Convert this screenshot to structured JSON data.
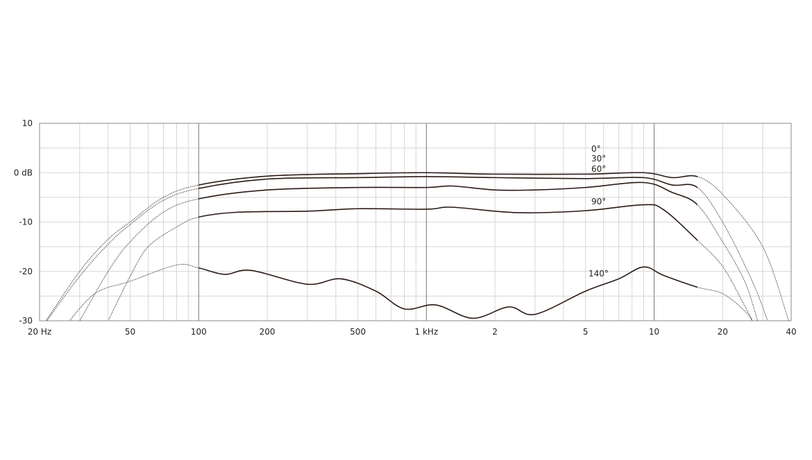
{
  "chart_data": {
    "type": "line",
    "title": "",
    "xlabel": "",
    "ylabel": "",
    "x_scale": "log",
    "xlim": [
      20,
      40000
    ],
    "ylim": [
      -30,
      10
    ],
    "grid": true,
    "line_color": "#2a1a14",
    "x_ticks": [
      {
        "value": 20,
        "label": "20 Hz"
      },
      {
        "value": 50,
        "label": "50"
      },
      {
        "value": 100,
        "label": "100"
      },
      {
        "value": 200,
        "label": "200"
      },
      {
        "value": 500,
        "label": "500"
      },
      {
        "value": 1000,
        "label": "1 kHz"
      },
      {
        "value": 2000,
        "label": "2"
      },
      {
        "value": 5000,
        "label": "5"
      },
      {
        "value": 10000,
        "label": "10"
      },
      {
        "value": 20000,
        "label": "20"
      },
      {
        "value": 40000,
        "label": "40"
      }
    ],
    "y_ticks": [
      {
        "value": 10,
        "label": "10"
      },
      {
        "value": 0,
        "label": "0 dB"
      },
      {
        "value": -10,
        "label": "-10"
      },
      {
        "value": -20,
        "label": "-20"
      },
      {
        "value": -30,
        "label": "-30"
      }
    ],
    "solid_range_hz": [
      100,
      15500
    ],
    "series": [
      {
        "name": "0°",
        "points": [
          [
            20,
            -32
          ],
          [
            30,
            -20
          ],
          [
            40,
            -13.5
          ],
          [
            50,
            -10
          ],
          [
            70,
            -5
          ],
          [
            100,
            -2.5
          ],
          [
            200,
            -0.7
          ],
          [
            500,
            -0.2
          ],
          [
            1000,
            0
          ],
          [
            2000,
            -0.3
          ],
          [
            5000,
            -0.3
          ],
          [
            9000,
            0
          ],
          [
            12000,
            -1
          ],
          [
            15500,
            -0.8
          ],
          [
            20000,
            -4.4
          ],
          [
            30000,
            -15
          ],
          [
            39000,
            -30
          ],
          [
            41000,
            -33
          ]
        ]
      },
      {
        "name": "30°",
        "points": [
          [
            20,
            -32
          ],
          [
            30,
            -21
          ],
          [
            40,
            -14.5
          ],
          [
            50,
            -10.5
          ],
          [
            70,
            -5.6
          ],
          [
            100,
            -3.2
          ],
          [
            200,
            -1.3
          ],
          [
            500,
            -1
          ],
          [
            1000,
            -0.8
          ],
          [
            2000,
            -1
          ],
          [
            5000,
            -1.2
          ],
          [
            9000,
            -1
          ],
          [
            12000,
            -2.5
          ],
          [
            15500,
            -3
          ],
          [
            20000,
            -10
          ],
          [
            27000,
            -22
          ],
          [
            31500,
            -30
          ],
          [
            33000,
            -33
          ]
        ]
      },
      {
        "name": "60°",
        "points": [
          [
            28,
            -32
          ],
          [
            30,
            -30
          ],
          [
            40,
            -20
          ],
          [
            50,
            -14
          ],
          [
            70,
            -8
          ],
          [
            100,
            -5.3
          ],
          [
            200,
            -3.5
          ],
          [
            500,
            -3
          ],
          [
            1000,
            -3
          ],
          [
            1300,
            -2.7
          ],
          [
            2000,
            -3.5
          ],
          [
            3000,
            -3.5
          ],
          [
            5000,
            -3
          ],
          [
            9000,
            -2
          ],
          [
            12000,
            -4
          ],
          [
            15500,
            -6.5
          ],
          [
            20000,
            -14
          ],
          [
            25000,
            -22
          ],
          [
            28500,
            -30
          ],
          [
            30000,
            -33
          ]
        ]
      },
      {
        "name": "90°",
        "points": [
          [
            38,
            -32
          ],
          [
            40,
            -30
          ],
          [
            50,
            -21
          ],
          [
            60,
            -15
          ],
          [
            80,
            -11
          ],
          [
            100,
            -9
          ],
          [
            150,
            -8
          ],
          [
            300,
            -7.8
          ],
          [
            500,
            -7.3
          ],
          [
            1000,
            -7.4
          ],
          [
            1300,
            -7
          ],
          [
            2500,
            -8.1
          ],
          [
            5000,
            -7.7
          ],
          [
            9000,
            -6.5
          ],
          [
            11000,
            -7.5
          ],
          [
            15500,
            -13.7
          ],
          [
            20000,
            -19
          ],
          [
            25000,
            -27
          ],
          [
            27000,
            -30
          ],
          [
            28000,
            -32
          ]
        ]
      },
      {
        "name": "140°",
        "points": [
          [
            26,
            -31
          ],
          [
            35,
            -24.5
          ],
          [
            50,
            -22
          ],
          [
            80,
            -18.7
          ],
          [
            100,
            -19.3
          ],
          [
            130,
            -20.6
          ],
          [
            170,
            -19.8
          ],
          [
            300,
            -22.6
          ],
          [
            420,
            -21.5
          ],
          [
            600,
            -24
          ],
          [
            800,
            -27.6
          ],
          [
            1100,
            -26.8
          ],
          [
            1600,
            -29.5
          ],
          [
            2300,
            -27.2
          ],
          [
            3000,
            -28.7
          ],
          [
            5000,
            -24
          ],
          [
            7000,
            -21.5
          ],
          [
            9000,
            -19.1
          ],
          [
            11000,
            -20.8
          ],
          [
            15500,
            -23.2
          ],
          [
            20000,
            -24.5
          ],
          [
            25000,
            -28
          ],
          [
            27000,
            -30
          ],
          [
            28000,
            -31
          ]
        ]
      }
    ],
    "annotations": [
      {
        "text": "0°",
        "series": "0°"
      },
      {
        "text": "30°",
        "series": "30°"
      },
      {
        "text": "60°",
        "series": "60°"
      },
      {
        "text": "90°",
        "series": "90°"
      },
      {
        "text": "140°",
        "series": "140°"
      }
    ]
  }
}
